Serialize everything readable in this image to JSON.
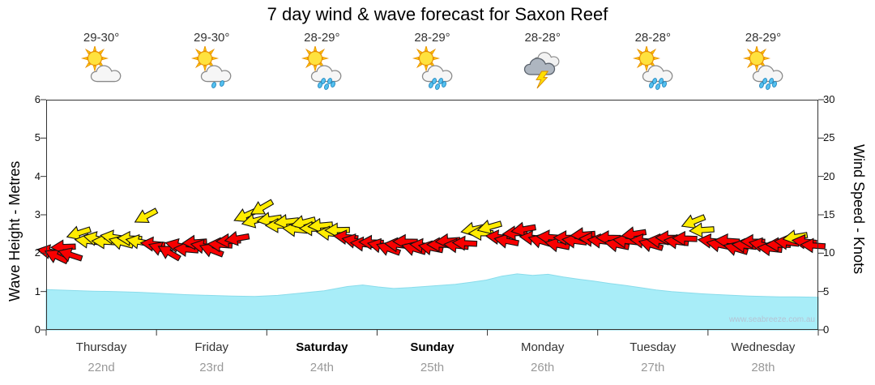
{
  "title": "7 day wind & wave forecast for Saxon Reef",
  "watermark": "www.seabreeze.com.au",
  "colors": {
    "wave_fill": "#a8edf8",
    "wave_edge": "#8adceb",
    "arrow_yellow": "#ffec00",
    "arrow_red": "#f80000",
    "axis": "#333333"
  },
  "days": [
    {
      "name": "Thursday",
      "date": "22nd",
      "temp": "29-30°",
      "icon": "sun-cloud",
      "weekend": false
    },
    {
      "name": "Friday",
      "date": "23rd",
      "temp": "29-30°",
      "icon": "sun-cloud-drizzle",
      "weekend": false
    },
    {
      "name": "Saturday",
      "date": "24th",
      "temp": "28-29°",
      "icon": "sun-cloud-rain",
      "weekend": true
    },
    {
      "name": "Sunday",
      "date": "25th",
      "temp": "28-29°",
      "icon": "sun-cloud-rain",
      "weekend": true
    },
    {
      "name": "Monday",
      "date": "26th",
      "temp": "28-28°",
      "icon": "storm",
      "weekend": false
    },
    {
      "name": "Tuesday",
      "date": "27th",
      "temp": "28-28°",
      "icon": "sun-cloud-rain",
      "weekend": false
    },
    {
      "name": "Wednesday",
      "date": "28th",
      "temp": "28-29°",
      "icon": "sun-cloud-rain",
      "weekend": false
    }
  ],
  "chart_data": {
    "type": "area+wind-arrows",
    "left_axis": {
      "label": "Wave Height - Metres",
      "min": 0,
      "max": 6,
      "ticks": [
        0,
        1,
        2,
        3,
        4,
        5,
        6
      ]
    },
    "right_axis": {
      "label": "Wind Speed - Knots",
      "min": 0,
      "max": 30,
      "ticks": [
        0,
        5,
        10,
        15,
        20,
        25,
        30
      ]
    },
    "grid": false,
    "wave_height_m": [
      [
        0,
        1.05
      ],
      [
        3,
        1.03
      ],
      [
        6,
        1.01
      ],
      [
        9,
        1.0
      ],
      [
        12,
        0.98
      ],
      [
        15,
        0.95
      ],
      [
        18,
        0.92
      ],
      [
        21,
        0.9
      ],
      [
        24,
        0.88
      ],
      [
        27,
        0.87
      ],
      [
        30,
        0.9
      ],
      [
        33,
        0.96
      ],
      [
        36,
        1.02
      ],
      [
        39,
        1.13
      ],
      [
        41,
        1.17
      ],
      [
        43,
        1.12
      ],
      [
        45,
        1.08
      ],
      [
        47,
        1.1
      ],
      [
        49,
        1.13
      ],
      [
        51,
        1.16
      ],
      [
        53,
        1.19
      ],
      [
        55,
        1.24
      ],
      [
        57,
        1.3
      ],
      [
        59,
        1.4
      ],
      [
        61,
        1.46
      ],
      [
        63,
        1.42
      ],
      [
        65,
        1.45
      ],
      [
        67,
        1.38
      ],
      [
        69,
        1.32
      ],
      [
        71,
        1.27
      ],
      [
        73,
        1.21
      ],
      [
        75,
        1.16
      ],
      [
        77,
        1.1
      ],
      [
        79,
        1.04
      ],
      [
        81,
        1.0
      ],
      [
        83,
        0.97
      ],
      [
        85,
        0.94
      ],
      [
        87,
        0.92
      ],
      [
        89,
        0.9
      ],
      [
        91,
        0.88
      ],
      [
        93,
        0.87
      ],
      [
        95,
        0.86
      ],
      [
        97,
        0.86
      ],
      [
        100,
        0.85
      ]
    ],
    "wind_arrows": [
      [
        0.4,
        10.2,
        190,
        "r"
      ],
      [
        1.3,
        9.6,
        205,
        "r"
      ],
      [
        2.2,
        10.8,
        178,
        "r"
      ],
      [
        3.1,
        9.8,
        198,
        "r"
      ],
      [
        4.2,
        12.6,
        162,
        "y"
      ],
      [
        5.3,
        11.6,
        186,
        "y"
      ],
      [
        6.4,
        11.9,
        192,
        "y"
      ],
      [
        7.5,
        11.5,
        183,
        "y"
      ],
      [
        8.6,
        12.1,
        188,
        "y"
      ],
      [
        9.7,
        11.4,
        195,
        "y"
      ],
      [
        10.8,
        11.9,
        182,
        "y"
      ],
      [
        11.9,
        11.5,
        190,
        "y"
      ],
      [
        12.9,
        14.8,
        152,
        "y"
      ],
      [
        13.8,
        11.2,
        185,
        "r"
      ],
      [
        14.8,
        10.6,
        200,
        "r"
      ],
      [
        15.9,
        10.1,
        210,
        "r"
      ],
      [
        17.0,
        11.0,
        193,
        "r"
      ],
      [
        18.1,
        10.5,
        185,
        "r"
      ],
      [
        19.2,
        11.4,
        176,
        "r"
      ],
      [
        20.3,
        10.9,
        190,
        "r"
      ],
      [
        21.4,
        10.4,
        201,
        "r"
      ],
      [
        22.5,
        11.1,
        184,
        "r"
      ],
      [
        23.6,
        11.6,
        178,
        "r"
      ],
      [
        24.7,
        11.9,
        170,
        "r"
      ],
      [
        25.8,
        14.9,
        156,
        "y"
      ],
      [
        26.9,
        14.2,
        166,
        "y"
      ],
      [
        27.9,
        15.9,
        150,
        "y"
      ],
      [
        28.9,
        14.4,
        171,
        "y"
      ],
      [
        30.0,
        13.6,
        180,
        "y"
      ],
      [
        31.1,
        14.1,
        174,
        "y"
      ],
      [
        32.2,
        13.1,
        186,
        "y"
      ],
      [
        33.3,
        14.0,
        166,
        "y"
      ],
      [
        34.4,
        13.2,
        181,
        "y"
      ],
      [
        35.5,
        13.6,
        175,
        "y"
      ],
      [
        36.6,
        12.6,
        186,
        "y"
      ],
      [
        37.7,
        13.0,
        179,
        "y"
      ],
      [
        38.8,
        12.1,
        186,
        "r"
      ],
      [
        39.9,
        11.6,
        191,
        "r"
      ],
      [
        41.0,
        11.2,
        186,
        "r"
      ],
      [
        42.1,
        11.4,
        182,
        "r"
      ],
      [
        43.2,
        11.0,
        191,
        "r"
      ],
      [
        44.3,
        10.6,
        200,
        "r"
      ],
      [
        45.4,
        11.1,
        186,
        "r"
      ],
      [
        46.5,
        11.5,
        181,
        "r"
      ],
      [
        47.6,
        10.6,
        196,
        "r"
      ],
      [
        48.7,
        11.0,
        186,
        "r"
      ],
      [
        49.8,
        10.7,
        191,
        "r"
      ],
      [
        50.9,
        11.1,
        181,
        "r"
      ],
      [
        52.0,
        11.6,
        176,
        "r"
      ],
      [
        53.1,
        11.0,
        186,
        "r"
      ],
      [
        54.2,
        11.3,
        183,
        "r"
      ],
      [
        55.3,
        13.1,
        168,
        "y"
      ],
      [
        56.3,
        12.6,
        180,
        "y"
      ],
      [
        57.4,
        13.4,
        164,
        "y"
      ],
      [
        58.5,
        12.1,
        186,
        "r"
      ],
      [
        59.6,
        11.6,
        191,
        "r"
      ],
      [
        60.7,
        12.6,
        176,
        "r"
      ],
      [
        61.8,
        13.1,
        170,
        "r"
      ],
      [
        62.9,
        12.0,
        186,
        "r"
      ],
      [
        64.0,
        11.6,
        196,
        "r"
      ],
      [
        65.1,
        12.1,
        184,
        "r"
      ],
      [
        66.2,
        11.1,
        191,
        "r"
      ],
      [
        67.3,
        12.0,
        181,
        "r"
      ],
      [
        68.4,
        11.6,
        187,
        "r"
      ],
      [
        69.5,
        12.4,
        176,
        "r"
      ],
      [
        70.6,
        11.8,
        184,
        "r"
      ],
      [
        71.7,
        11.6,
        186,
        "r"
      ],
      [
        72.8,
        12.0,
        181,
        "r"
      ],
      [
        73.9,
        11.1,
        191,
        "r"
      ],
      [
        75.0,
        11.6,
        186,
        "r"
      ],
      [
        76.1,
        12.5,
        171,
        "r"
      ],
      [
        77.2,
        11.6,
        186,
        "r"
      ],
      [
        78.3,
        11.1,
        196,
        "r"
      ],
      [
        79.4,
        11.6,
        186,
        "r"
      ],
      [
        80.5,
        12.0,
        181,
        "r"
      ],
      [
        81.6,
        11.5,
        187,
        "r"
      ],
      [
        82.7,
        11.9,
        182,
        "r"
      ],
      [
        83.8,
        14.1,
        158,
        "y"
      ],
      [
        84.9,
        13.0,
        176,
        "y"
      ],
      [
        86.0,
        11.6,
        186,
        "r"
      ],
      [
        87.1,
        11.1,
        191,
        "r"
      ],
      [
        88.2,
        11.6,
        184,
        "r"
      ],
      [
        89.3,
        10.6,
        196,
        "r"
      ],
      [
        90.4,
        11.0,
        186,
        "r"
      ],
      [
        91.5,
        11.5,
        181,
        "r"
      ],
      [
        92.6,
        11.1,
        191,
        "r"
      ],
      [
        93.7,
        10.6,
        186,
        "r"
      ],
      [
        94.8,
        11.1,
        181,
        "r"
      ],
      [
        95.9,
        11.4,
        186,
        "r"
      ],
      [
        97.0,
        12.1,
        170,
        "y"
      ],
      [
        98.2,
        11.5,
        186,
        "r"
      ],
      [
        99.3,
        11.0,
        184,
        "r"
      ]
    ]
  }
}
